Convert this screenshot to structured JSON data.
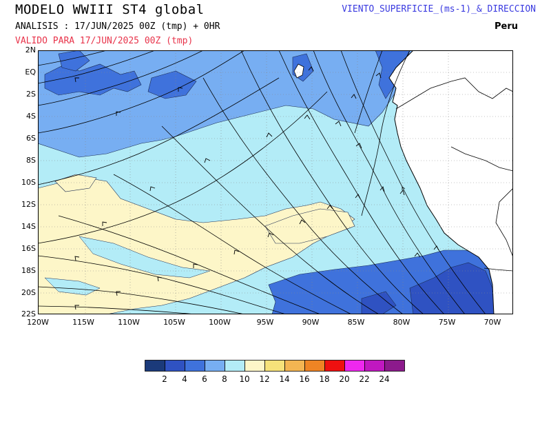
{
  "header": {
    "title": "MODELO WWIII ST4 global",
    "analysis": "ANALISIS : 17/JUN/2025 00Z  (tmp) + 0HR",
    "valid": "VALIDO PARA  17/JUN/2025 00Z  (tmp)",
    "variable": "VIENTO_SUPERFICIE_(ms-1)_&_DIRECCION",
    "country": "Peru"
  },
  "map": {
    "lat_labels": [
      "2N",
      "EQ",
      "2S",
      "4S",
      "6S",
      "8S",
      "10S",
      "12S",
      "14S",
      "16S",
      "18S",
      "20S",
      "22S"
    ],
    "lon_labels": [
      "120W",
      "115W",
      "110W",
      "105W",
      "100W",
      "95W",
      "90W",
      "85W",
      "80W",
      "75W",
      "70W"
    ],
    "land_color": "#ffffff",
    "ocean_base_color": "#b3ecf7",
    "gridline_style": "dotted"
  },
  "legend": {
    "labels": [
      "2",
      "4",
      "6",
      "8",
      "10",
      "12",
      "14",
      "16",
      "18",
      "20",
      "22",
      "24"
    ],
    "colors": [
      "#1b3a7a",
      "#2f52c2",
      "#3f72dc",
      "#77aef2",
      "#b3ecf7",
      "#fdf6c8",
      "#f6e27a",
      "#f3b552",
      "#ee8424",
      "#ee1010",
      "#ee28ee",
      "#c018c0",
      "#8c1a8c"
    ]
  }
}
